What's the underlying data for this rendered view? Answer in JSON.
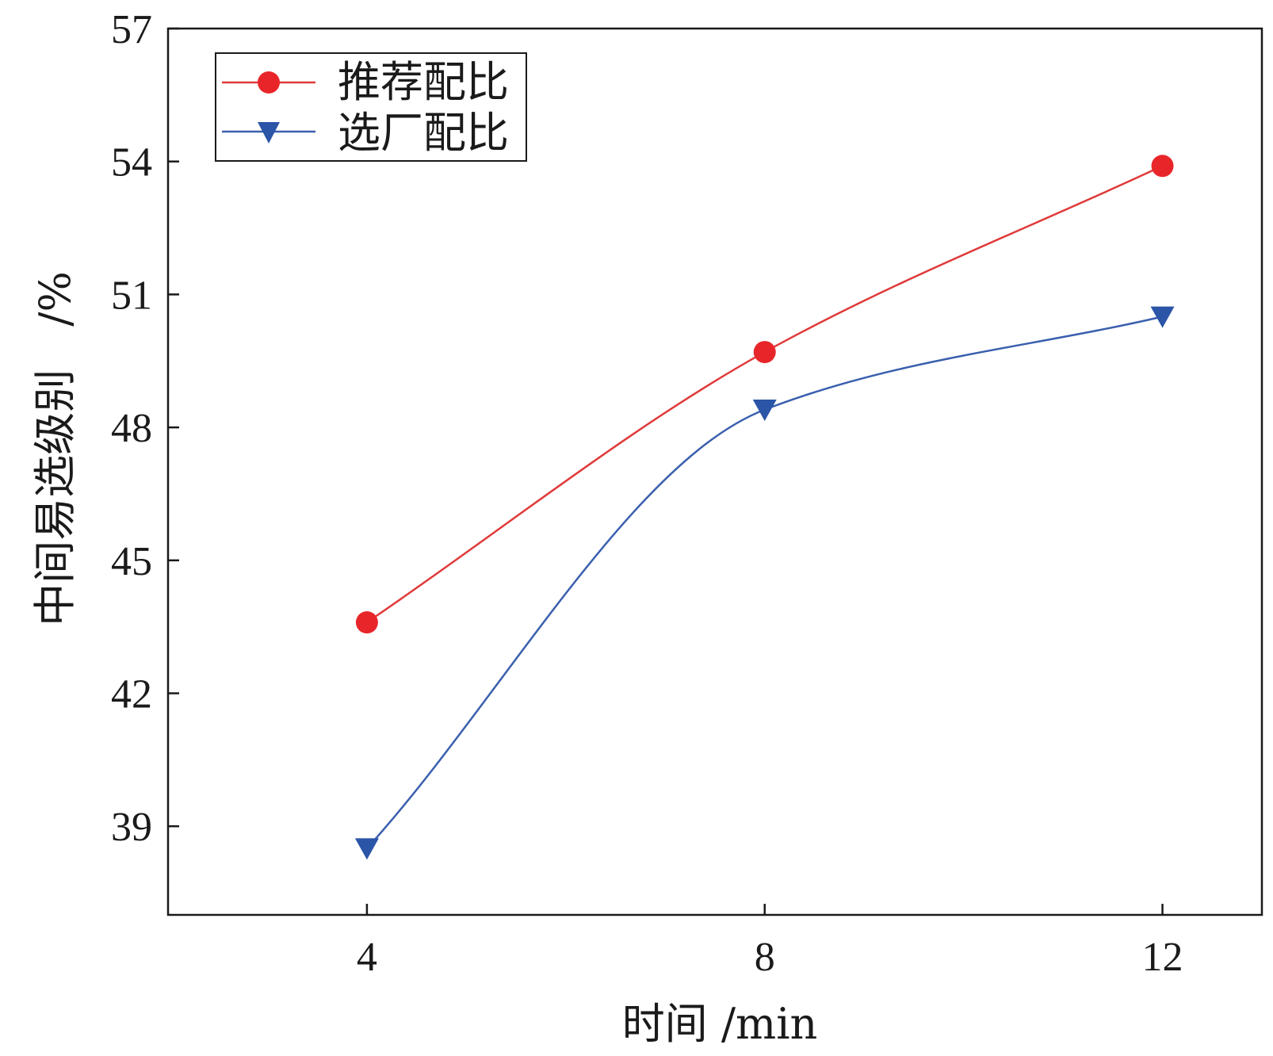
{
  "chart_data": {
    "type": "line",
    "x": [
      4,
      8,
      12
    ],
    "xlabel": "时间 /min",
    "ylabel": "中间易选级别　/%",
    "xticks": [
      "4",
      "8",
      "12"
    ],
    "yticks": [
      "39",
      "42",
      "45",
      "48",
      "51",
      "54",
      "57"
    ],
    "xlim": [
      2,
      13
    ],
    "ylim": [
      37,
      57
    ],
    "grid": false,
    "legend_position": "top-left",
    "series": [
      {
        "name": "推荐配比",
        "marker": "circle",
        "color": "#e8262a",
        "line_color": "#e03a3a",
        "values": [
          43.6,
          49.7,
          53.9
        ]
      },
      {
        "name": "选厂配比",
        "marker": "triangle-down",
        "color": "#2b55a7",
        "line_color": "#3a5fae",
        "values": [
          38.5,
          48.4,
          50.5
        ]
      }
    ]
  }
}
